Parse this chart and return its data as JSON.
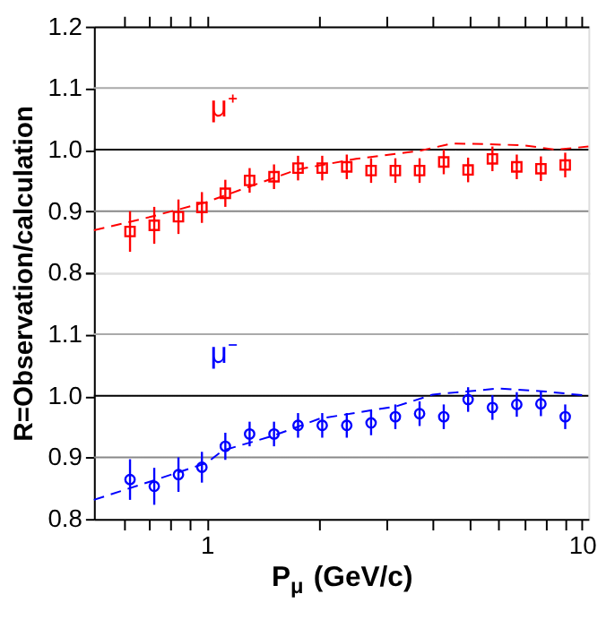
{
  "chart_data": [
    {
      "type": "scatter",
      "ylabel": "R=Observation/calculation",
      "log": "x",
      "xlim": [
        0.5,
        10.4
      ],
      "xticks": [
        {
          "value": 0.6,
          "label": null
        },
        {
          "value": 0.7,
          "label": null
        },
        {
          "value": 0.8,
          "label": null
        },
        {
          "value": 0.9,
          "label": null
        },
        {
          "value": 1,
          "label": null
        },
        {
          "value": 2,
          "label": null
        },
        {
          "value": 3,
          "label": null
        },
        {
          "value": 4,
          "label": null
        },
        {
          "value": 5,
          "label": null
        },
        {
          "value": 6,
          "label": null
        },
        {
          "value": 7,
          "label": null
        },
        {
          "value": 8,
          "label": null
        },
        {
          "value": 9,
          "label": null
        },
        {
          "value": 10,
          "label": null
        }
      ],
      "ylim": [
        0.8,
        1.2
      ],
      "yticks": [
        {
          "value": 0.8,
          "label": "0.8"
        },
        {
          "value": 0.9,
          "label": "0.9"
        },
        {
          "value": 1.0,
          "label": "1.0"
        },
        {
          "value": 1.1,
          "label": "1.1"
        },
        {
          "value": 1.2,
          "label": "1.2"
        }
      ],
      "tick_labels": "y",
      "grid": false,
      "legend": false,
      "ref_lines": [
        {
          "axis": "y",
          "value": 0.9,
          "color": "#888888"
        },
        {
          "axis": "y",
          "value": 1.0,
          "color": "#000000"
        },
        {
          "axis": "y",
          "value": 1.1,
          "color": "#aaaaaa"
        }
      ],
      "annotations": [
        "μ⁺"
      ],
      "series": [
        {
          "type": "scatter",
          "color": "#ff0000",
          "marker": "square",
          "x": [
            0.624,
            0.724,
            0.84,
            0.97,
            1.12,
            1.3,
            1.51,
            1.75,
            2.03,
            2.36,
            2.74,
            3.18,
            3.69,
            4.28,
            4.97,
            5.77,
            6.7,
            7.77,
            9.02
          ],
          "values": [
            0.867,
            0.877,
            0.891,
            0.906,
            0.929,
            0.95,
            0.956,
            0.97,
            0.97,
            0.972,
            0.966,
            0.966,
            0.966,
            0.98,
            0.967,
            0.985,
            0.972,
            0.969,
            0.975
          ],
          "errors": [
            0.033,
            0.03,
            0.028,
            0.025,
            0.022,
            0.02,
            0.02,
            0.02,
            0.02,
            0.02,
            0.02,
            0.02,
            0.02,
            0.02,
            0.02,
            0.02,
            0.02,
            0.02,
            0.02
          ]
        },
        {
          "type": "line",
          "color": "#ff0000",
          "marker": "none",
          "line_style": "dashed",
          "x": [
            0.5,
            0.7,
            1.0,
            1.3,
            1.75,
            2.5,
            3.69,
            4.5,
            5.5,
            7.0,
            8.5,
            10.4
          ],
          "values": [
            0.869,
            0.89,
            0.915,
            0.94,
            0.968,
            0.985,
            0.998,
            1.01,
            1.009,
            1.007,
            1.0,
            1.005
          ]
        }
      ]
    },
    {
      "type": "scatter",
      "xlabel": "P$_{μ}$ (GeV/c)",
      "log": "x",
      "xlim": [
        0.5,
        10.4
      ],
      "xticks": [
        {
          "value": 0.6,
          "label": null
        },
        {
          "value": 0.7,
          "label": null
        },
        {
          "value": 0.8,
          "label": null
        },
        {
          "value": 0.9,
          "label": null
        },
        1,
        {
          "value": 2,
          "label": null
        },
        {
          "value": 3,
          "label": null
        },
        {
          "value": 4,
          "label": null
        },
        {
          "value": 5,
          "label": null
        },
        {
          "value": 6,
          "label": null
        },
        {
          "value": 7,
          "label": null
        },
        {
          "value": 8,
          "label": null
        },
        {
          "value": 9,
          "label": null
        },
        10
      ],
      "ylim": [
        0.8,
        1.2
      ],
      "yticks": [
        {
          "value": 0.8,
          "label": "0.8"
        },
        {
          "value": 0.9,
          "label": "0.9"
        },
        {
          "value": 1.0,
          "label": "1.0"
        },
        {
          "value": 1.1,
          "label": "1.1"
        },
        {
          "value": 1.2,
          "label": null
        }
      ],
      "grid": false,
      "legend": false,
      "ref_lines": [
        {
          "axis": "y",
          "value": 0.9,
          "color": "#888888"
        },
        {
          "axis": "y",
          "value": 1.0,
          "color": "#000000"
        },
        {
          "axis": "y",
          "value": 1.1,
          "color": "#aaaaaa"
        }
      ],
      "annotations": [
        "μ⁻"
      ],
      "series": [
        {
          "type": "scatter",
          "color": "#0000ff",
          "marker": "circle",
          "x": [
            0.624,
            0.724,
            0.84,
            0.97,
            1.12,
            1.3,
            1.51,
            1.75,
            2.03,
            2.36,
            2.74,
            3.18,
            3.69,
            4.28,
            4.97,
            5.77,
            6.7,
            7.77,
            9.02
          ],
          "values": [
            0.864,
            0.853,
            0.872,
            0.884,
            0.918,
            0.938,
            0.938,
            0.952,
            0.952,
            0.952,
            0.956,
            0.966,
            0.971,
            0.966,
            0.994,
            0.981,
            0.986,
            0.987,
            0.966
          ],
          "errors": [
            0.033,
            0.03,
            0.028,
            0.025,
            0.022,
            0.02,
            0.02,
            0.02,
            0.02,
            0.02,
            0.02,
            0.02,
            0.02,
            0.02,
            0.02,
            0.02,
            0.02,
            0.02,
            0.02
          ]
        },
        {
          "type": "line",
          "color": "#0000ff",
          "marker": "none",
          "line_style": "dashed",
          "x": [
            0.5,
            0.7,
            1.0,
            1.1,
            1.5,
            2.0,
            3.2,
            4.0,
            6.0,
            8.0,
            10.4
          ],
          "values": [
            0.831,
            0.86,
            0.891,
            0.911,
            0.935,
            0.963,
            0.983,
            1.002,
            1.012,
            1.007,
            1.0
          ]
        }
      ]
    }
  ]
}
